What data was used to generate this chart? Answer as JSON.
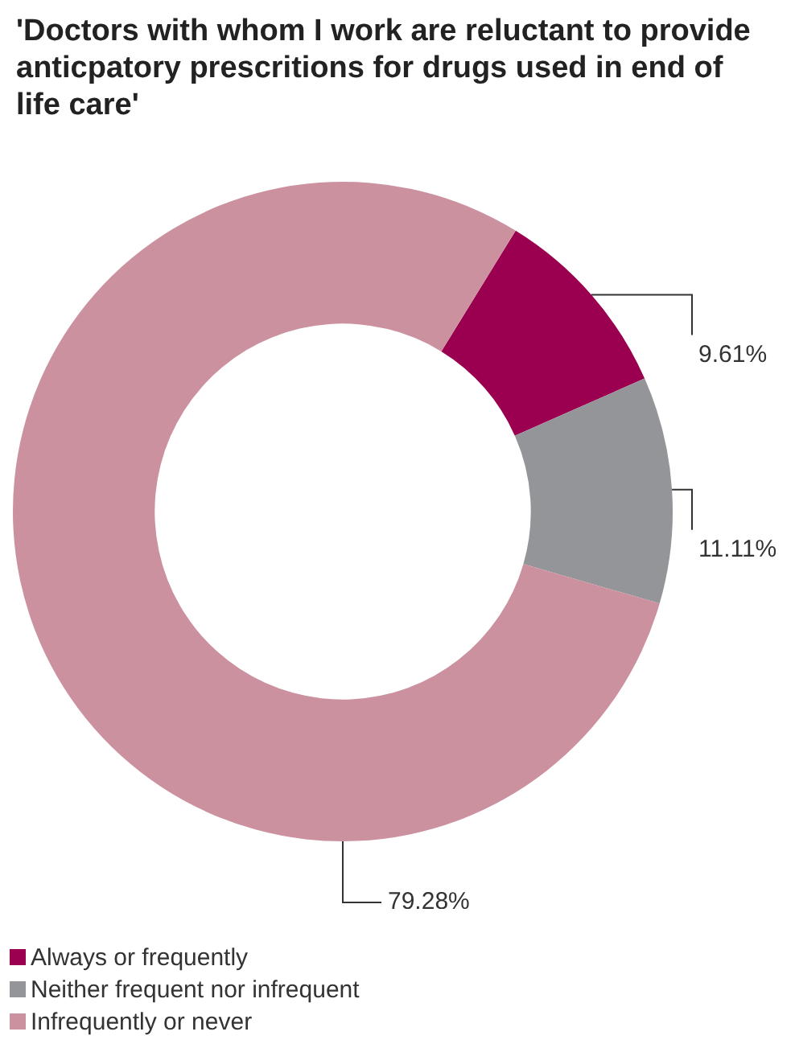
{
  "chart_data": {
    "type": "donut",
    "title": "'Doctors with whom I work are reluctant to provide anticpatory prescritions for drugs used in end of life care'",
    "categories": [
      "Always or frequently",
      "Neither frequent nor infrequent",
      "Infrequently or never"
    ],
    "values": [
      9.61,
      11.11,
      79.28
    ],
    "value_labels": [
      "9.61%",
      "11.11%",
      "79.28%"
    ],
    "colors": [
      "#9b0050",
      "#939598",
      "#cc919f"
    ],
    "legend": "bottom left"
  }
}
